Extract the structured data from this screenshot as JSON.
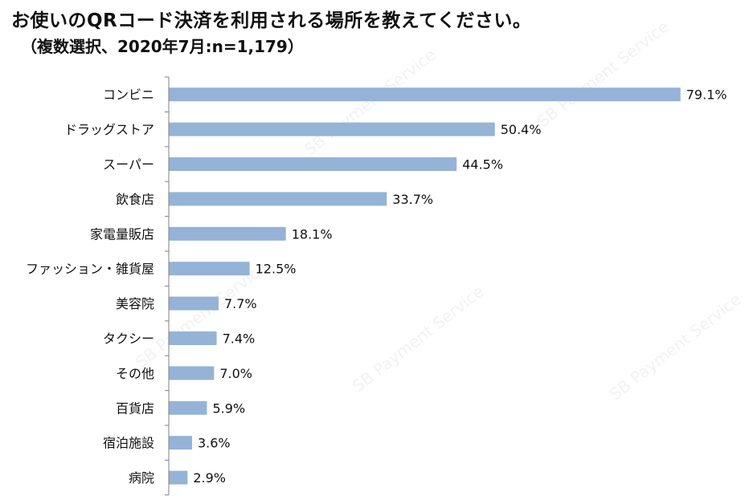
{
  "title": "お使いのQRコード決済を利用される場所を教えてください。",
  "subtitle": "（複数選択、2020年7月:n=1,179）",
  "watermark": "SB Payment Service",
  "colors": {
    "bar": "#95b3d7",
    "axis": "#808080"
  },
  "chart_data": {
    "type": "bar",
    "orientation": "horizontal",
    "categories": [
      "コンビニ",
      "ドラッグストア",
      "スーパー",
      "飲食店",
      "家電量販店",
      "ファッション・雑貨屋",
      "美容院",
      "タクシー",
      "その他",
      "百貨店",
      "宿泊施設",
      "病院"
    ],
    "values": [
      79.1,
      50.4,
      44.5,
      33.7,
      18.1,
      12.5,
      7.7,
      7.4,
      7.0,
      5.9,
      3.6,
      2.9
    ],
    "data_labels": [
      "79.1%",
      "50.4%",
      "44.5%",
      "33.7%",
      "18.1%",
      "12.5%",
      "7.7%",
      "7.4%",
      "7.0%",
      "5.9%",
      "3.6%",
      "2.9%"
    ],
    "unit": "%",
    "xlim": [
      0,
      100
    ],
    "grid": false,
    "legend": "none"
  }
}
